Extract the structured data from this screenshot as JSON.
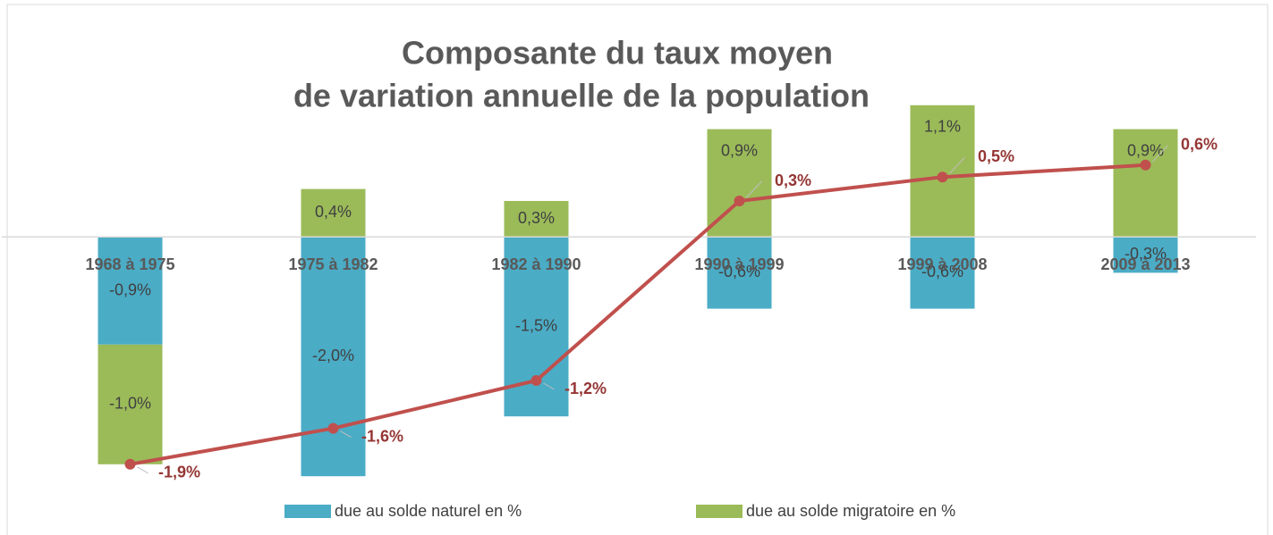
{
  "chart_data": {
    "type": "stacked-bar-line",
    "title": [
      "Composante du taux moyen",
      "de variation annuelle de la population"
    ],
    "categories": [
      "1968 à 1975",
      "1975 à 1982",
      "1982 à 1990",
      "1990 à 1999",
      "1999 à 2008",
      "2009 à 2013"
    ],
    "series": [
      {
        "name": "due au solde naturel en %",
        "color": "#4bacc6",
        "type": "bar",
        "values": [
          -0.9,
          -2.0,
          -1.5,
          -0.6,
          -0.6,
          -0.3
        ],
        "value_labels": [
          "-0,9%",
          "-2,0%",
          "-1,5%",
          "-0,6%",
          "-0,6%",
          "-0,3%"
        ]
      },
      {
        "name": "due au solde migratoire en %",
        "color": "#9bbb59",
        "type": "bar",
        "values": [
          -1.0,
          0.4,
          0.3,
          0.9,
          1.1,
          0.9
        ],
        "value_labels": [
          "-1,0%",
          "0,4%",
          "0,3%",
          "0,9%",
          "1,1%",
          "0,9%"
        ]
      },
      {
        "color": "#c0504d",
        "type": "line",
        "values": [
          -1.9,
          -1.6,
          -1.2,
          0.3,
          0.5,
          0.6
        ],
        "value_labels": [
          "-1,9%",
          "-1,6%",
          "-1,2%",
          "0,3%",
          "0,5%",
          "0,6%"
        ]
      }
    ],
    "ylim": [
      -2.2,
      1.8
    ],
    "legend": "bottom"
  }
}
